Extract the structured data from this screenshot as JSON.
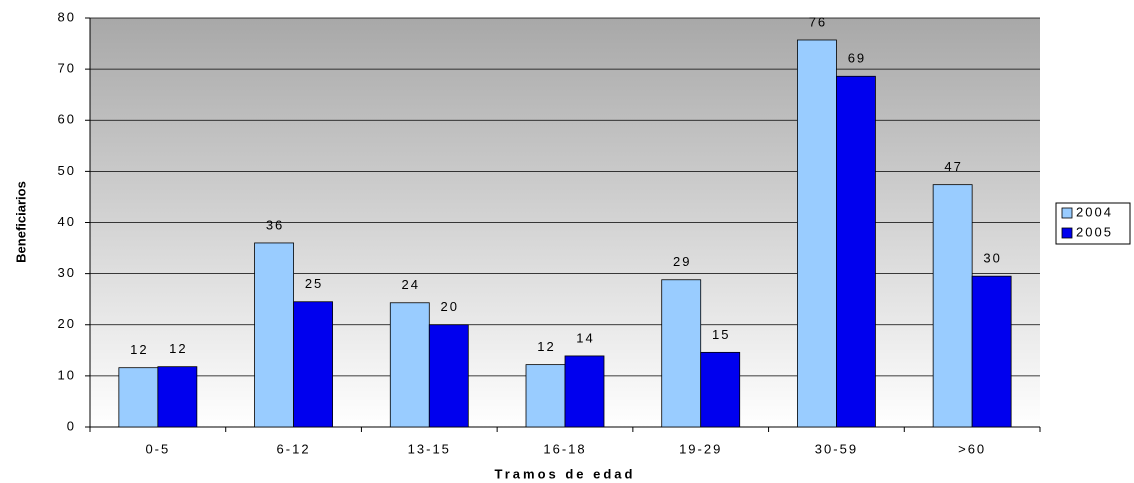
{
  "chart_data": {
    "type": "bar",
    "x_label": "Tramos de edad",
    "y_label": "Beneficiarios",
    "categories": [
      "0-5",
      "6-12",
      "13-15",
      "16-18",
      "19-29",
      "30-59",
      ">60"
    ],
    "series": [
      {
        "name": "2004",
        "color": "#99ccff",
        "values": [
          11.6,
          36,
          24.3,
          12.2,
          28.8,
          75.7,
          47.4
        ],
        "value_labels": [
          "12",
          "36",
          "24",
          "12",
          "29",
          "76",
          "47"
        ]
      },
      {
        "name": "2005",
        "color": "#0000ee",
        "values": [
          11.8,
          24.5,
          20,
          13.9,
          14.6,
          68.6,
          29.5
        ],
        "value_labels": [
          "12",
          "25",
          "20",
          "14",
          "15",
          "69",
          "30"
        ]
      }
    ],
    "ylim": [
      0,
      80
    ],
    "yticks": [
      0,
      10,
      20,
      30,
      40,
      50,
      60,
      70,
      80
    ],
    "grid": true,
    "legend": "right"
  }
}
